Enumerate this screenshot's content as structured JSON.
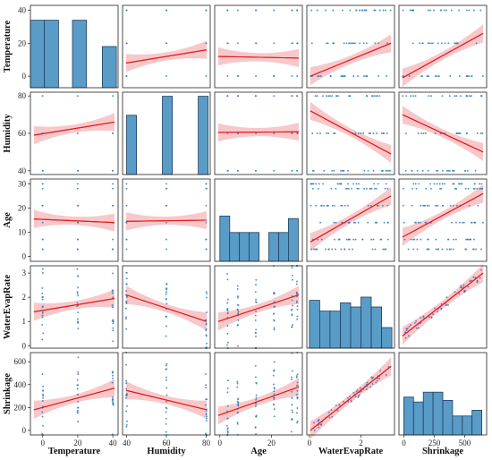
{
  "chart_data": {
    "type": "pairplot",
    "variables": [
      "Temperature",
      "Humidity",
      "Age",
      "WaterEvapRate",
      "Shrinkage"
    ],
    "ranges": {
      "Temperature": [
        -7,
        43
      ],
      "Humidity": [
        38,
        82
      ],
      "Age": [
        -2,
        32
      ],
      "WaterEvapRate": [
        -0.1,
        3.3
      ],
      "Shrinkage": [
        -40,
        680
      ]
    },
    "ticks": {
      "Temperature": [
        0,
        20,
        40
      ],
      "Humidity": [
        40,
        60,
        80
      ],
      "Age": [
        0,
        10,
        20,
        30
      ],
      "WaterEvapRate": [
        0,
        1,
        2,
        3
      ],
      "Shrinkage": [
        0,
        200,
        400,
        600
      ]
    },
    "x_tick_labels": {
      "Temperature": [
        "0",
        "20",
        "40"
      ],
      "Humidity": [
        "40",
        "60",
        "80"
      ],
      "Age": [
        "0",
        "20"
      ],
      "WaterEvapRate": [
        "0",
        "2"
      ],
      "Shrinkage": [
        "0",
        "250",
        "500"
      ]
    },
    "x_tick_values": {
      "Temperature": [
        0,
        20,
        40
      ],
      "Humidity": [
        40,
        60,
        80
      ],
      "Age": [
        0,
        20
      ],
      "WaterEvapRate": [
        0,
        2
      ],
      "Shrinkage": [
        0,
        250,
        500
      ]
    },
    "diagonal_histograms": {
      "Temperature": {
        "bins": [
          [
            -7,
            1
          ],
          [
            1,
            9
          ],
          [
            17,
            25
          ],
          [
            34,
            42
          ]
        ],
        "heights": [
          0.82,
          0.82,
          0.82,
          0.5
        ]
      },
      "Humidity": {
        "bins": [
          [
            40,
            45
          ],
          [
            58,
            63
          ],
          [
            76,
            81
          ]
        ],
        "heights": [
          0.72,
          0.95,
          0.95
        ]
      },
      "Age": {
        "bins": [
          [
            0,
            3.8
          ],
          [
            3.8,
            7.6
          ],
          [
            7.6,
            11.4
          ],
          [
            11.4,
            15.2
          ],
          [
            19,
            22.8
          ],
          [
            22.8,
            26.6
          ],
          [
            26.6,
            30.4
          ]
        ],
        "heights": [
          0.55,
          0.35,
          0.35,
          0.35,
          0.35,
          0.35,
          0.52
        ]
      },
      "WaterEvapRate": {
        "bins": [
          [
            0,
            0.4
          ],
          [
            0.4,
            0.8
          ],
          [
            0.8,
            1.2
          ],
          [
            1.2,
            1.6
          ],
          [
            1.6,
            2.0
          ],
          [
            2.0,
            2.4
          ],
          [
            2.4,
            2.8
          ],
          [
            2.8,
            3.2
          ]
        ],
        "heights": [
          0.58,
          0.45,
          0.45,
          0.55,
          0.5,
          0.62,
          0.5,
          0.25
        ]
      },
      "Shrinkage": {
        "bins": [
          [
            0,
            80
          ],
          [
            80,
            160
          ],
          [
            160,
            240
          ],
          [
            240,
            320
          ],
          [
            320,
            400
          ],
          [
            400,
            480
          ],
          [
            480,
            560
          ],
          [
            560,
            640
          ]
        ],
        "heights": [
          0.46,
          0.4,
          0.52,
          0.52,
          0.42,
          0.23,
          0.23,
          0.3
        ]
      }
    },
    "regression_lines": [
      {
        "x": "Humidity",
        "y": "Temperature",
        "y_at_xmin": 8,
        "y_at_xmax": 16
      },
      {
        "x": "Age",
        "y": "Temperature",
        "y_at_xmin": 12,
        "y_at_xmax": 11
      },
      {
        "x": "WaterEvapRate",
        "y": "Temperature",
        "y_at_xmin": 0,
        "y_at_xmax": 20
      },
      {
        "x": "Shrinkage",
        "y": "Temperature",
        "y_at_xmin": -1,
        "y_at_xmax": 26
      },
      {
        "x": "Temperature",
        "y": "Humidity",
        "y_at_xmin": 59,
        "y_at_xmax": 66
      },
      {
        "x": "Age",
        "y": "Humidity",
        "y_at_xmin": 60.5,
        "y_at_xmax": 60.8
      },
      {
        "x": "WaterEvapRate",
        "y": "Humidity",
        "y_at_xmin": 72,
        "y_at_xmax": 49
      },
      {
        "x": "Shrinkage",
        "y": "Humidity",
        "y_at_xmin": 70,
        "y_at_xmax": 50
      },
      {
        "x": "Temperature",
        "y": "Age",
        "y_at_xmin": 15.5,
        "y_at_xmax": 14
      },
      {
        "x": "Humidity",
        "y": "Age",
        "y_at_xmin": 14.5,
        "y_at_xmax": 15
      },
      {
        "x": "WaterEvapRate",
        "y": "Age",
        "y_at_xmin": 6,
        "y_at_xmax": 25
      },
      {
        "x": "Shrinkage",
        "y": "Age",
        "y_at_xmin": 8,
        "y_at_xmax": 26
      },
      {
        "x": "Temperature",
        "y": "WaterEvapRate",
        "y_at_xmin": 1.4,
        "y_at_xmax": 1.95
      },
      {
        "x": "Humidity",
        "y": "WaterEvapRate",
        "y_at_xmin": 2.1,
        "y_at_xmax": 1.0
      },
      {
        "x": "Age",
        "y": "WaterEvapRate",
        "y_at_xmin": 1.0,
        "y_at_xmax": 2.1
      },
      {
        "x": "Shrinkage",
        "y": "WaterEvapRate",
        "y_at_xmin": 0.4,
        "y_at_xmax": 3.0
      },
      {
        "x": "Temperature",
        "y": "Shrinkage",
        "y_at_xmin": 180,
        "y_at_xmax": 370
      },
      {
        "x": "Humidity",
        "y": "Shrinkage",
        "y_at_xmin": 350,
        "y_at_xmax": 180
      },
      {
        "x": "Age",
        "y": "Shrinkage",
        "y_at_xmin": 130,
        "y_at_xmax": 380
      },
      {
        "x": "WaterEvapRate",
        "y": "Shrinkage",
        "y_at_xmin": 0,
        "y_at_xmax": 560
      }
    ],
    "grid": false,
    "legend": "none",
    "colors": {
      "points": "#2f7fc1",
      "hist_fill": "#5a9cc8",
      "hist_edge": "#1f3f5f",
      "regression": "#e41a1c",
      "confidence": "#f4b6b8",
      "diag_regression": "#9a6a1a"
    }
  }
}
